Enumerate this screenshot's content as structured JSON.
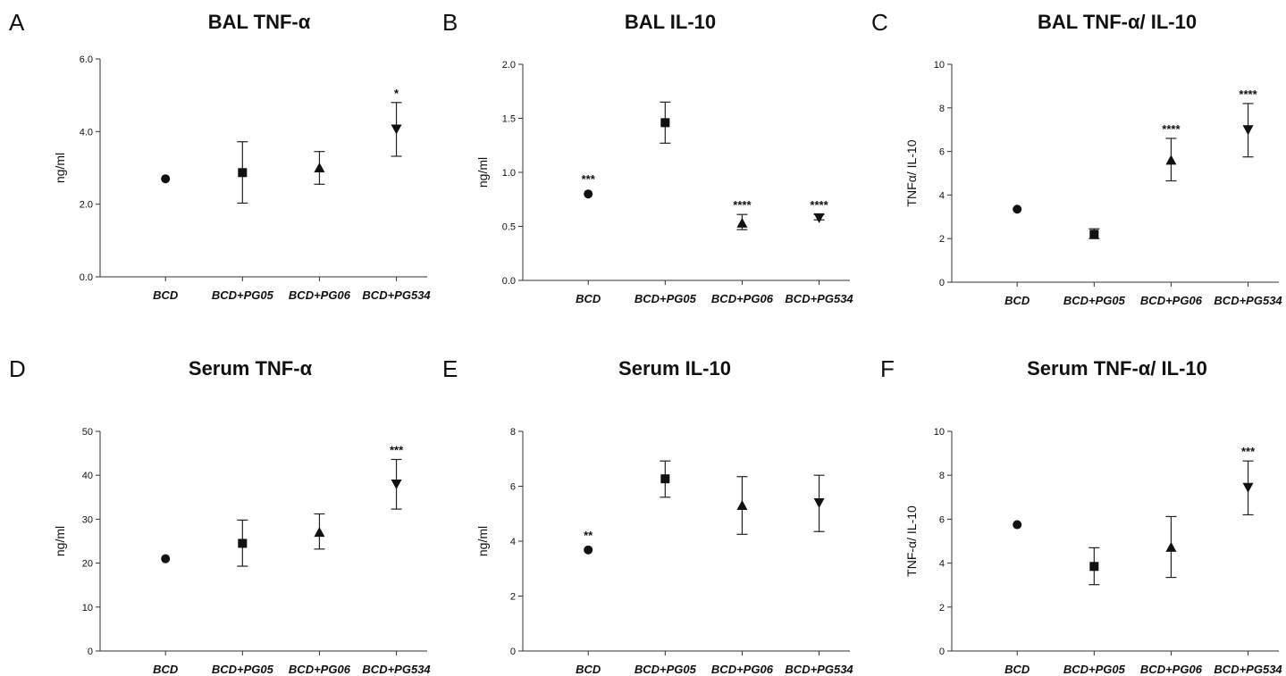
{
  "chart_data": [
    {
      "panel": "A",
      "title": "BAL TNF-α",
      "type": "scatter",
      "ylabel": "ng/ml",
      "ylim": [
        0,
        6
      ],
      "yticks": [
        "0.0",
        "2.0",
        "4.0",
        "6.0"
      ],
      "categories": [
        "BCD",
        "BCD+PG05",
        "BCD+PG06",
        "BCD+PG534"
      ],
      "markers": [
        "circle",
        "square",
        "triangle-up",
        "triangle-down"
      ],
      "values": [
        2.7,
        2.87,
        3.0,
        4.07
      ],
      "err_low": [
        2.7,
        2.03,
        2.55,
        3.32
      ],
      "err_high": [
        2.7,
        3.72,
        3.45,
        4.8
      ],
      "annotations": [
        "",
        "",
        "",
        "*"
      ]
    },
    {
      "panel": "B",
      "title": "BAL IL-10",
      "type": "scatter",
      "ylabel": "ng/ml",
      "ylim": [
        0,
        2
      ],
      "yticks": [
        "0.0",
        "0.5",
        "1.0",
        "1.5",
        "2.0"
      ],
      "categories": [
        "BCD",
        "BCD+PG05",
        "BCD+PG06",
        "BCD+PG534"
      ],
      "markers": [
        "circle",
        "square",
        "triangle-up",
        "triangle-down"
      ],
      "values": [
        0.8,
        1.46,
        0.53,
        0.58
      ],
      "err_low": [
        0.8,
        1.27,
        0.47,
        0.56
      ],
      "err_high": [
        0.8,
        1.65,
        0.61,
        0.61
      ],
      "annotations": [
        "***",
        "",
        "****",
        "****"
      ]
    },
    {
      "panel": "C",
      "title": "BAL TNF-α/ IL-10",
      "type": "scatter",
      "ylabel": "TNFα/ IL-10",
      "ylim": [
        0,
        10
      ],
      "yticks": [
        "0",
        "2",
        "4",
        "6",
        "8",
        "10"
      ],
      "categories": [
        "BCD",
        "BCD+PG05",
        "BCD+PG06",
        "BCD+PG534"
      ],
      "markers": [
        "circle",
        "square",
        "triangle-up",
        "triangle-down"
      ],
      "values": [
        3.35,
        2.2,
        5.6,
        7.0
      ],
      "err_low": [
        3.35,
        2.0,
        4.65,
        5.75
      ],
      "err_high": [
        3.35,
        2.45,
        6.6,
        8.2
      ],
      "annotations": [
        "",
        "",
        "****",
        "****"
      ]
    },
    {
      "panel": "D",
      "title": "Serum TNF-α",
      "type": "scatter",
      "ylabel": "ng/ml",
      "ylim": [
        0,
        50
      ],
      "yticks": [
        "0",
        "10",
        "20",
        "30",
        "40",
        "50"
      ],
      "categories": [
        "BCD",
        "BCD+PG05",
        "BCD+PG06",
        "BCD+PG534"
      ],
      "markers": [
        "circle",
        "square",
        "triangle-up",
        "triangle-down"
      ],
      "values": [
        21,
        24.5,
        27,
        38
      ],
      "err_low": [
        21,
        19.3,
        23.2,
        32.3
      ],
      "err_high": [
        21,
        29.8,
        31.2,
        43.6
      ],
      "annotations": [
        "",
        "",
        "",
        "***"
      ]
    },
    {
      "panel": "E",
      "title": "Serum IL-10",
      "type": "scatter",
      "ylabel": "ng/ml",
      "ylim": [
        0,
        8
      ],
      "yticks": [
        "0",
        "2",
        "4",
        "6",
        "8"
      ],
      "categories": [
        "BCD",
        "BCD+PG05",
        "BCD+PG06",
        "BCD+PG534"
      ],
      "markers": [
        "circle",
        "square",
        "triangle-up",
        "triangle-down"
      ],
      "values": [
        3.68,
        6.27,
        5.3,
        5.4
      ],
      "err_low": [
        3.68,
        5.6,
        4.25,
        4.35
      ],
      "err_high": [
        3.68,
        6.92,
        6.35,
        6.4
      ],
      "annotations": [
        "**",
        "",
        "",
        ""
      ]
    },
    {
      "panel": "F",
      "title": "Serum TNF-α/ IL-10",
      "type": "scatter",
      "ylabel": "TNF-α/ IL-10",
      "ylim": [
        0,
        10
      ],
      "yticks": [
        "0",
        "2",
        "4",
        "6",
        "8",
        "10"
      ],
      "categories": [
        "BCD",
        "BCD+PG05",
        "BCD+PG06",
        "BCD+PG534"
      ],
      "markers": [
        "circle",
        "square",
        "triangle-up",
        "triangle-down"
      ],
      "values": [
        5.75,
        3.85,
        4.72,
        7.45
      ],
      "err_low": [
        5.75,
        3.02,
        3.35,
        6.2
      ],
      "err_high": [
        5.75,
        4.7,
        6.12,
        8.65
      ],
      "annotations": [
        "",
        "",
        "",
        "***"
      ]
    }
  ]
}
